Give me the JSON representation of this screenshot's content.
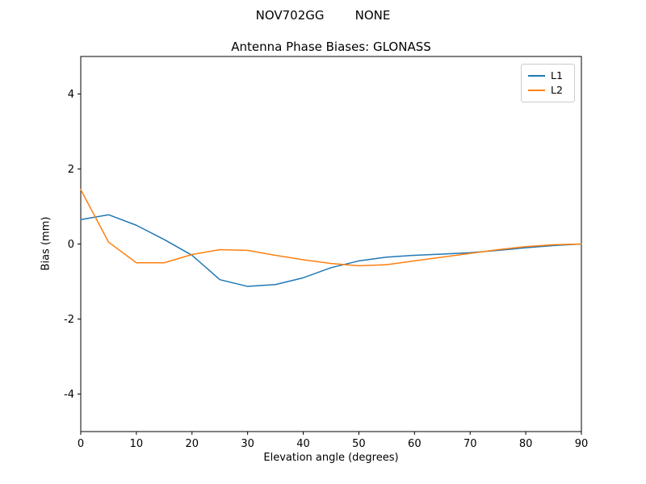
{
  "figure": {
    "suptitle": "NOV702GG        NONE"
  },
  "chart_data": {
    "type": "line",
    "title": "Antenna Phase Biases: GLONASS",
    "xlabel": "Elevation angle (degrees)",
    "ylabel": "Bias (mm)",
    "xlim": [
      0,
      90
    ],
    "ylim": [
      -5,
      5
    ],
    "xticks": [
      0,
      10,
      20,
      30,
      40,
      50,
      60,
      70,
      80,
      90
    ],
    "yticks": [
      -4,
      -2,
      0,
      2,
      4
    ],
    "grid": false,
    "legend_position": "upper right",
    "x": [
      0,
      5,
      10,
      15,
      20,
      25,
      30,
      35,
      40,
      45,
      50,
      55,
      60,
      65,
      70,
      75,
      80,
      85,
      90
    ],
    "series": [
      {
        "name": "L1",
        "color": "#1f77b4",
        "values": [
          0.65,
          0.78,
          0.5,
          0.12,
          -0.3,
          -0.95,
          -1.13,
          -1.08,
          -0.9,
          -0.63,
          -0.45,
          -0.35,
          -0.3,
          -0.27,
          -0.23,
          -0.17,
          -0.1,
          -0.04,
          0.0
        ]
      },
      {
        "name": "L2",
        "color": "#ff7f0e",
        "values": [
          1.45,
          0.05,
          -0.5,
          -0.5,
          -0.28,
          -0.15,
          -0.17,
          -0.3,
          -0.42,
          -0.52,
          -0.58,
          -0.55,
          -0.45,
          -0.35,
          -0.25,
          -0.15,
          -0.07,
          -0.02,
          0.0
        ]
      }
    ]
  }
}
